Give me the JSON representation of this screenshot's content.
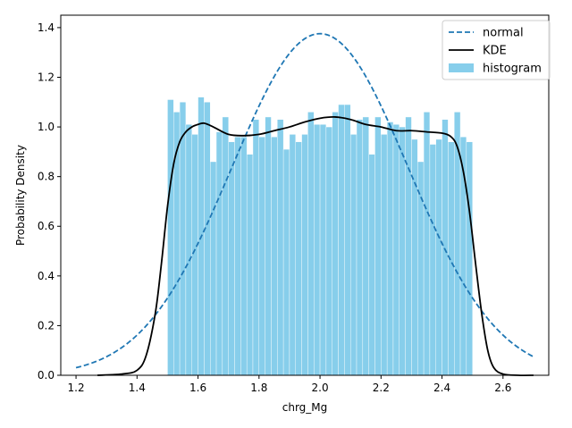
{
  "chart_data": {
    "type": "bar",
    "title": "",
    "xlabel": "chrg_Mg",
    "ylabel": "Probability Density",
    "xlim": [
      1.15,
      2.75
    ],
    "ylim": [
      0.0,
      1.45
    ],
    "xticks": [
      1.2,
      1.4,
      1.6,
      1.8,
      2.0,
      2.2,
      2.4,
      2.6
    ],
    "xtick_labels": [
      "1.2",
      "1.4",
      "1.6",
      "1.8",
      "2.0",
      "2.2",
      "2.4",
      "2.6"
    ],
    "yticks": [
      0.0,
      0.2,
      0.4,
      0.6,
      0.8,
      1.0,
      1.2,
      1.4
    ],
    "ytick_labels": [
      "0.0",
      "0.2",
      "0.4",
      "0.6",
      "0.8",
      "1.0",
      "1.2",
      "1.4"
    ],
    "grid": false,
    "legend_position": "top-right",
    "histogram": {
      "name": "histogram",
      "color": "#87ceeb",
      "bin_start": 1.5,
      "bin_width": 0.02,
      "values": [
        1.11,
        1.06,
        1.1,
        1.01,
        0.97,
        1.12,
        1.1,
        0.86,
        0.98,
        1.04,
        0.94,
        0.96,
        0.96,
        0.89,
        1.03,
        0.96,
        1.04,
        0.96,
        1.03,
        0.91,
        0.97,
        0.94,
        0.97,
        1.06,
        1.01,
        1.01,
        1.0,
        1.06,
        1.09,
        1.09,
        0.97,
        1.03,
        1.04,
        0.89,
        1.04,
        0.97,
        1.02,
        1.01,
        1.0,
        1.04,
        0.95,
        0.86,
        1.06,
        0.93,
        0.95,
        1.03,
        0.94,
        1.06,
        0.96,
        0.94
      ]
    },
    "kde": {
      "name": "KDE",
      "color": "#000000",
      "x": [
        1.27,
        1.35,
        1.4,
        1.43,
        1.46,
        1.48,
        1.5,
        1.52,
        1.54,
        1.56,
        1.58,
        1.6,
        1.62,
        1.65,
        1.7,
        1.75,
        1.8,
        1.85,
        1.9,
        1.95,
        2.0,
        2.05,
        2.1,
        2.15,
        2.2,
        2.25,
        2.3,
        2.35,
        2.4,
        2.43,
        2.45,
        2.47,
        2.49,
        2.51,
        2.53,
        2.55,
        2.57,
        2.6,
        2.65,
        2.7
      ],
      "y": [
        0.0,
        0.005,
        0.02,
        0.08,
        0.25,
        0.45,
        0.68,
        0.85,
        0.94,
        0.98,
        1.0,
        1.01,
        1.015,
        1.0,
        0.97,
        0.965,
        0.97,
        0.985,
        1.0,
        1.02,
        1.035,
        1.04,
        1.03,
        1.01,
        1.0,
        0.985,
        0.985,
        0.98,
        0.975,
        0.96,
        0.92,
        0.82,
        0.66,
        0.45,
        0.25,
        0.1,
        0.03,
        0.005,
        0.0,
        0.0
      ]
    },
    "normal": {
      "name": "normal",
      "color": "#1f77b4",
      "mean": 2.0,
      "std": 0.29,
      "x_range": [
        1.2,
        2.7
      ]
    }
  }
}
